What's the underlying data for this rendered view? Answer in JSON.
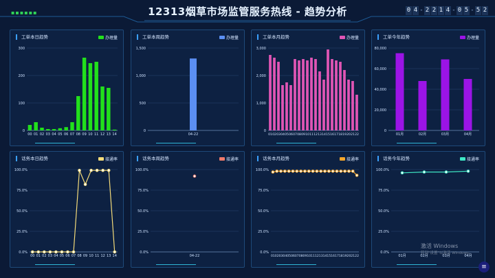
{
  "header": {
    "title": "12313烟草市场监管服务热线 - 趋势分析",
    "deco": "▪▪▪▪▪▪",
    "clock": [
      "0",
      "4",
      "-",
      "2",
      "2",
      "1",
      "4",
      "-",
      "0",
      "5",
      "-",
      "5",
      "2"
    ]
  },
  "watermark": {
    "line1": "激活 Windows",
    "line2": "转到\"设置\"以激活 Windows。"
  },
  "menu_icon": "≡",
  "colors": {
    "green": "#22e01c",
    "blue": "#5b8ff2",
    "pink": "#e055b5",
    "purple": "#9b14e6",
    "yellow": "#f5dc7a",
    "coral": "#f07a6a",
    "orange": "#f5a62b",
    "teal": "#3fe8c5"
  },
  "chart_data": [
    {
      "id": "p1",
      "type": "bar",
      "title": "工单本日趋势",
      "legend": "办理量",
      "categories": [
        "00",
        "01",
        "02",
        "03",
        "04",
        "05",
        "06",
        "07",
        "08",
        "09",
        "10",
        "11",
        "12",
        "13",
        "14"
      ],
      "values": [
        20,
        30,
        10,
        5,
        5,
        8,
        12,
        30,
        125,
        265,
        245,
        250,
        160,
        155,
        3
      ],
      "yticks": [
        "0",
        "100",
        "200",
        "300"
      ],
      "ylim": [
        0,
        300
      ]
    },
    {
      "id": "p2",
      "type": "bar",
      "title": "工单本周趋势",
      "legend": "办理量",
      "categories": [
        "04-22"
      ],
      "values": [
        1310
      ],
      "yticks": [
        "0",
        "500",
        "1,000",
        "1,500"
      ],
      "ylim": [
        0,
        1500
      ]
    },
    {
      "id": "p3",
      "type": "bar",
      "title": "工单本月趋势",
      "legend": "办理量",
      "categories": [
        "01",
        "02",
        "03",
        "04",
        "05",
        "06",
        "07",
        "08",
        "09",
        "10",
        "11",
        "12",
        "13",
        "14",
        "15",
        "16",
        "17",
        "18",
        "19",
        "20",
        "21",
        "22"
      ],
      "values": [
        2750,
        2650,
        2500,
        1650,
        1750,
        1650,
        2600,
        2550,
        2600,
        2550,
        2650,
        2600,
        2150,
        1850,
        2950,
        2600,
        2550,
        2500,
        2200,
        1850,
        1800,
        1300
      ],
      "yticks": [
        "0",
        "1,000",
        "2,000",
        "3,000"
      ],
      "ylim": [
        0,
        3000
      ]
    },
    {
      "id": "p4",
      "type": "bar",
      "title": "工单今年趋势",
      "legend": "办理量",
      "categories": [
        "01月",
        "02月",
        "03月",
        "04月"
      ],
      "values": [
        75000,
        48000,
        69000,
        50000
      ],
      "yticks": [
        "0",
        "20,000",
        "40,000",
        "60,000",
        "80,000"
      ],
      "ylim": [
        0,
        80000
      ]
    },
    {
      "id": "p5",
      "type": "line",
      "title": "话务本日趋势",
      "legend": "接通率",
      "categories": [
        "00",
        "01",
        "02",
        "03",
        "04",
        "05",
        "06",
        "07",
        "08",
        "09",
        "10",
        "11",
        "12",
        "13",
        "14"
      ],
      "values": [
        0,
        0,
        0,
        0,
        0,
        0,
        0,
        0,
        99,
        82,
        99,
        99,
        99,
        99,
        0
      ],
      "yticks": [
        "0.0%",
        "25.0%",
        "50.0%",
        "75.0%",
        "100.0%"
      ],
      "ylim": [
        0,
        100
      ]
    },
    {
      "id": "p6",
      "type": "line",
      "title": "话务本周趋势",
      "legend": "接通率",
      "categories": [
        "04-22"
      ],
      "values": [
        92
      ],
      "yticks": [
        "0.0%",
        "25.0%",
        "50.0%",
        "75.0%",
        "100.0%"
      ],
      "ylim": [
        0,
        100
      ]
    },
    {
      "id": "p7",
      "type": "line",
      "title": "话务本月趋势",
      "legend": "接通率",
      "categories": [
        "01",
        "02",
        "03",
        "04",
        "05",
        "06",
        "07",
        "08",
        "09",
        "10",
        "11",
        "12",
        "13",
        "14",
        "15",
        "16",
        "17",
        "18",
        "19",
        "20",
        "21",
        "22"
      ],
      "values": [
        97,
        98,
        98,
        98,
        98,
        98,
        98,
        98,
        98,
        98,
        98,
        98,
        98,
        98,
        98,
        98,
        98,
        98,
        98,
        98,
        98,
        93
      ],
      "yticks": [
        "0.0%",
        "25.0%",
        "50.0%",
        "75.0%",
        "100.0%"
      ],
      "ylim": [
        0,
        100
      ]
    },
    {
      "id": "p8",
      "type": "line",
      "title": "话务今年趋势",
      "legend": "接通率",
      "categories": [
        "01月",
        "02月",
        "03月",
        "04月"
      ],
      "values": [
        96,
        97,
        97,
        98
      ],
      "yticks": [
        "0.0%",
        "25.0%",
        "50.0%",
        "75.0%",
        "100.0%"
      ],
      "ylim": [
        0,
        100
      ]
    }
  ]
}
